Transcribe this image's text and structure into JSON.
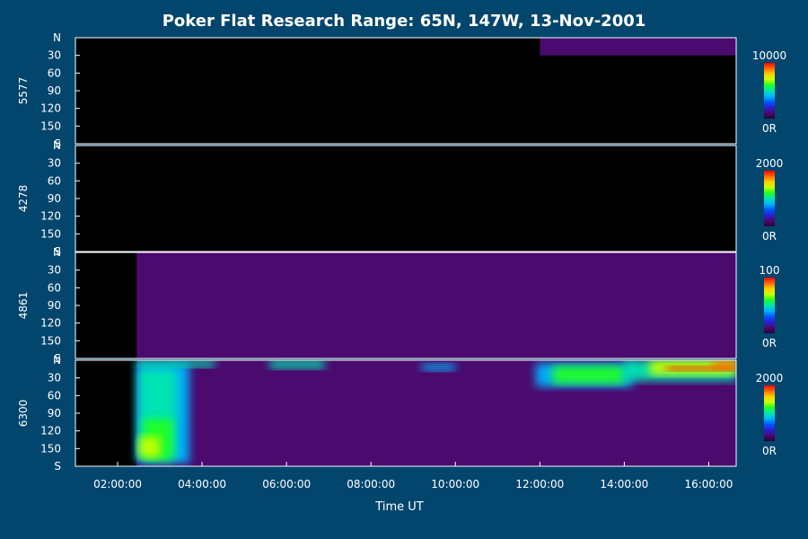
{
  "chart_data": {
    "type": "heatmap",
    "title": "Poker Flat Research Range: 65N, 147W, 13-Nov-2001",
    "xlabel": "Time UT",
    "x_ticks": [
      "02:00:00",
      "04:00:00",
      "06:00:00",
      "08:00:00",
      "10:00:00",
      "12:00:00",
      "14:00:00",
      "16:00:00"
    ],
    "x_tick_hours": [
      2,
      4,
      6,
      8,
      10,
      12,
      14,
      16
    ],
    "xlim_hours": [
      1.0,
      16.65
    ],
    "data_start_hours": 2.45,
    "y_ticks": [
      "N",
      "30",
      "60",
      "90",
      "120",
      "150",
      "S"
    ],
    "y_tick_values": [
      0,
      30,
      60,
      90,
      120,
      150,
      180
    ],
    "ylim": [
      0,
      180
    ],
    "panels": [
      {
        "ylabel": "5577",
        "colorbar": {
          "max_label": "10000",
          "min_label": "0R"
        },
        "features": [
          {
            "t0": 12.0,
            "t1": 16.65,
            "y0": 0,
            "y1": 30,
            "intensity": 0.05
          }
        ]
      },
      {
        "ylabel": "4278",
        "colorbar": {
          "max_label": "2000",
          "min_label": "0R"
        },
        "features": []
      },
      {
        "ylabel": "4861",
        "colorbar": {
          "max_label": "100",
          "min_label": "0R"
        },
        "features": [
          {
            "t0": 2.45,
            "t1": 16.65,
            "y0": 0,
            "y1": 180,
            "intensity": 0.1
          }
        ]
      },
      {
        "ylabel": "6300",
        "colorbar": {
          "max_label": "2000",
          "min_label": "0R"
        },
        "features": [
          {
            "t0": 2.45,
            "t1": 16.65,
            "y0": 0,
            "y1": 180,
            "intensity": 0.1
          },
          {
            "t0": 2.45,
            "t1": 3.7,
            "y0": 5,
            "y1": 175,
            "intensity": 0.35
          },
          {
            "t0": 2.45,
            "t1": 4.3,
            "y0": 0,
            "y1": 12,
            "intensity": 0.5
          },
          {
            "t0": 2.5,
            "t1": 3.4,
            "y0": 15,
            "y1": 165,
            "intensity": 0.45
          },
          {
            "t0": 2.6,
            "t1": 3.3,
            "y0": 100,
            "y1": 170,
            "intensity": 0.6
          },
          {
            "t0": 2.5,
            "t1": 3.0,
            "y0": 130,
            "y1": 165,
            "intensity": 0.72
          },
          {
            "t0": 5.6,
            "t1": 6.9,
            "y0": 0,
            "y1": 14,
            "intensity": 0.45
          },
          {
            "t0": 9.2,
            "t1": 10.0,
            "y0": 6,
            "y1": 18,
            "intensity": 0.4
          },
          {
            "t0": 11.9,
            "t1": 14.2,
            "y0": 5,
            "y1": 45,
            "intensity": 0.4
          },
          {
            "t0": 12.3,
            "t1": 14.0,
            "y0": 10,
            "y1": 40,
            "intensity": 0.55
          },
          {
            "t0": 14.0,
            "t1": 16.65,
            "y0": 0,
            "y1": 35,
            "intensity": 0.45
          },
          {
            "t0": 14.6,
            "t1": 16.65,
            "y0": 0,
            "y1": 25,
            "intensity": 0.65
          },
          {
            "t0": 15.0,
            "t1": 16.65,
            "y0": 10,
            "y1": 18,
            "intensity": 0.95
          },
          {
            "t0": 16.1,
            "t1": 16.65,
            "y0": 0,
            "y1": 15,
            "intensity": 0.9
          }
        ]
      }
    ],
    "colormap": [
      "#2a0033",
      "#4a0a6e",
      "#2b1fd0",
      "#0058ff",
      "#00b4ff",
      "#00e6b0",
      "#20ff20",
      "#c8ff00",
      "#ffd000",
      "#ff6a00",
      "#ff0000"
    ],
    "background_color": "#02466e",
    "no_data_color": "#000000",
    "grid": false
  }
}
